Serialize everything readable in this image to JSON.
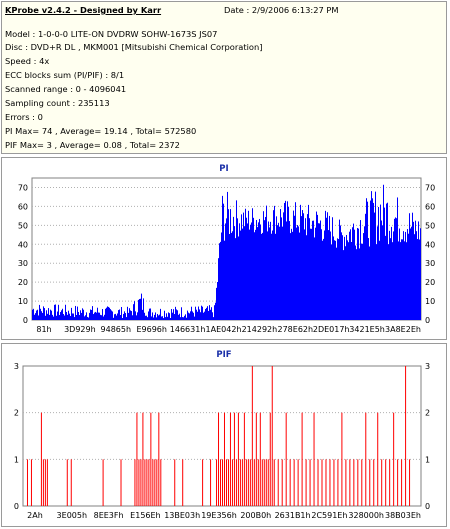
{
  "info": {
    "app_title": "KProbe v2.4.2 - Designed by Karr",
    "date": "Date : 2/9/2006 6:13:27 PM",
    "lines": [
      "Model : 1-0-0-0 LITE-ON DVDRW SOHW-1673S JS07",
      "Disc : DVD+R DL , MKM001 [Mitsubishi Chemical Corporation]",
      "Speed : 4x",
      "ECC blocks sum (PI/PIF) : 8/1",
      "Scanned range : 0 - 4096041",
      "Sampling count : 235113",
      "Errors : 0",
      "PI Max= 74 , Average= 19.14 , Total= 572580",
      "PIF Max= 3 , Average= 0.08 , Total= 2372"
    ]
  },
  "chart_data": [
    {
      "type": "bar",
      "title": "PI",
      "ylim": [
        0,
        75
      ],
      "yticks": [
        0,
        10,
        20,
        30,
        40,
        50,
        60,
        70
      ],
      "xtick_labels": [
        "81h",
        "3D929h",
        "94865h",
        "E9696h",
        "146631h",
        "1AE042h",
        "214292h",
        "278E62h",
        "2DE017h",
        "3421E5h",
        "3A8E2Eh"
      ],
      "series_color": "#0000ff",
      "grid": true,
      "profile": [
        {
          "x": 0.0,
          "low": 2,
          "high": 9
        },
        {
          "x": 0.1,
          "low": 1,
          "high": 8
        },
        {
          "x": 0.25,
          "low": 1,
          "high": 7
        },
        {
          "x": 0.28,
          "low": 3,
          "high": 16
        },
        {
          "x": 0.3,
          "low": 1,
          "high": 7
        },
        {
          "x": 0.47,
          "low": 1,
          "high": 8
        },
        {
          "x": 0.49,
          "low": 40,
          "high": 70
        },
        {
          "x": 0.55,
          "low": 45,
          "high": 60
        },
        {
          "x": 0.65,
          "low": 45,
          "high": 64
        },
        {
          "x": 0.75,
          "low": 40,
          "high": 60
        },
        {
          "x": 0.8,
          "low": 36,
          "high": 52
        },
        {
          "x": 0.9,
          "low": 40,
          "high": 74
        },
        {
          "x": 1.0,
          "low": 38,
          "high": 55
        }
      ]
    },
    {
      "type": "bar",
      "title": "PIF",
      "ylim": [
        0,
        3
      ],
      "yticks": [
        0,
        1,
        2,
        3
      ],
      "xtick_labels": [
        "2Ah",
        "3E005h",
        "8EE3Fh",
        "E156Eh",
        "13BE03h",
        "19E356h",
        "200B0h",
        "2631B1h",
        "2C591Eh",
        "328000h",
        "38B03Eh"
      ],
      "series_color": "#ff0000",
      "grid": true,
      "bars_x": [
        0.01,
        0.02,
        0.045,
        0.05,
        0.055,
        0.06,
        0.11,
        0.12,
        0.2,
        0.245,
        0.28,
        0.285,
        0.29,
        0.295,
        0.3,
        0.305,
        0.31,
        0.315,
        0.32,
        0.325,
        0.33,
        0.335,
        0.34,
        0.345,
        0.38,
        0.4,
        0.45,
        0.47,
        0.485,
        0.49,
        0.495,
        0.5,
        0.505,
        0.51,
        0.515,
        0.52,
        0.525,
        0.53,
        0.535,
        0.54,
        0.545,
        0.55,
        0.555,
        0.56,
        0.565,
        0.57,
        0.575,
        0.58,
        0.585,
        0.59,
        0.595,
        0.6,
        0.605,
        0.61,
        0.615,
        0.62,
        0.625,
        0.63,
        0.64,
        0.65,
        0.66,
        0.67,
        0.68,
        0.69,
        0.7,
        0.71,
        0.72,
        0.73,
        0.74,
        0.75,
        0.76,
        0.77,
        0.78,
        0.79,
        0.8,
        0.81,
        0.82,
        0.83,
        0.84,
        0.85,
        0.86,
        0.87,
        0.88,
        0.89,
        0.9,
        0.91,
        0.92,
        0.93,
        0.94,
        0.95,
        0.96,
        0.97
      ],
      "bars_y": [
        1,
        1,
        2,
        1,
        1,
        1,
        1,
        1,
        1,
        1,
        1,
        2,
        1,
        1,
        2,
        1,
        1,
        1,
        2,
        1,
        1,
        1,
        2,
        1,
        1,
        1,
        1,
        1,
        1,
        2,
        1,
        1,
        2,
        1,
        1,
        2,
        1,
        2,
        1,
        2,
        1,
        1,
        2,
        1,
        1,
        1,
        3,
        1,
        2,
        1,
        2,
        1,
        1,
        1,
        1,
        2,
        3,
        1,
        1,
        1,
        2,
        1,
        1,
        1,
        2,
        1,
        1,
        2,
        1,
        1,
        1,
        1,
        1,
        1,
        2,
        1,
        1,
        1,
        1,
        1,
        2,
        1,
        1,
        2,
        1,
        1,
        1,
        2,
        1,
        1,
        3,
        1
      ]
    }
  ]
}
